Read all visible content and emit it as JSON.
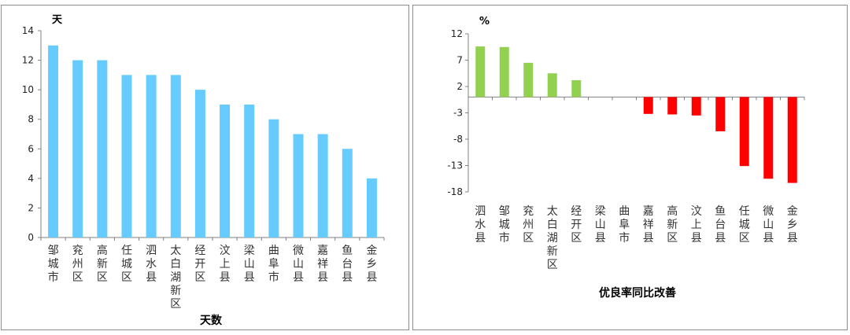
{
  "chart_data": [
    {
      "type": "bar",
      "unit_label": "天",
      "xlabel": "天数",
      "categories": [
        "邹城市",
        "兖州区",
        "高新区",
        "任城区",
        "泗水县",
        "太白湖新区",
        "经开区",
        "汶上县",
        "梁山县",
        "曲阜市",
        "微山县",
        "嘉祥县",
        "鱼台县",
        "金乡县"
      ],
      "values": [
        13,
        12,
        12,
        11,
        11,
        11,
        10,
        9,
        9,
        8,
        7,
        7,
        6,
        4
      ],
      "ylim": [
        0,
        14
      ],
      "yticks": [
        "0",
        "2",
        "4",
        "6",
        "8",
        "10",
        "12",
        "14"
      ],
      "grid": false,
      "bar_color": "#66CCFF"
    },
    {
      "type": "bar",
      "unit_label": "%",
      "xlabel": "优良率同比改善",
      "categories": [
        "泗水县",
        "邹城市",
        "兖州区",
        "太白湖新区",
        "经开区",
        "梁山县",
        "曲阜市",
        "嘉祥县",
        "高新区",
        "汶上县",
        "鱼台县",
        "任城区",
        "微山县",
        "金乡县"
      ],
      "values": [
        9.6,
        9.5,
        6.5,
        4.5,
        3.2,
        0,
        0,
        -3.2,
        -3.3,
        -3.5,
        -6.5,
        -13.1,
        -15.5,
        -16.3
      ],
      "ylim": [
        -18,
        12
      ],
      "yticks": [
        "12",
        "7",
        "2",
        "-3",
        "-8",
        "-13",
        "-18"
      ],
      "grid": false,
      "positive_color": "#92D050",
      "negative_color": "#FF0000"
    }
  ]
}
